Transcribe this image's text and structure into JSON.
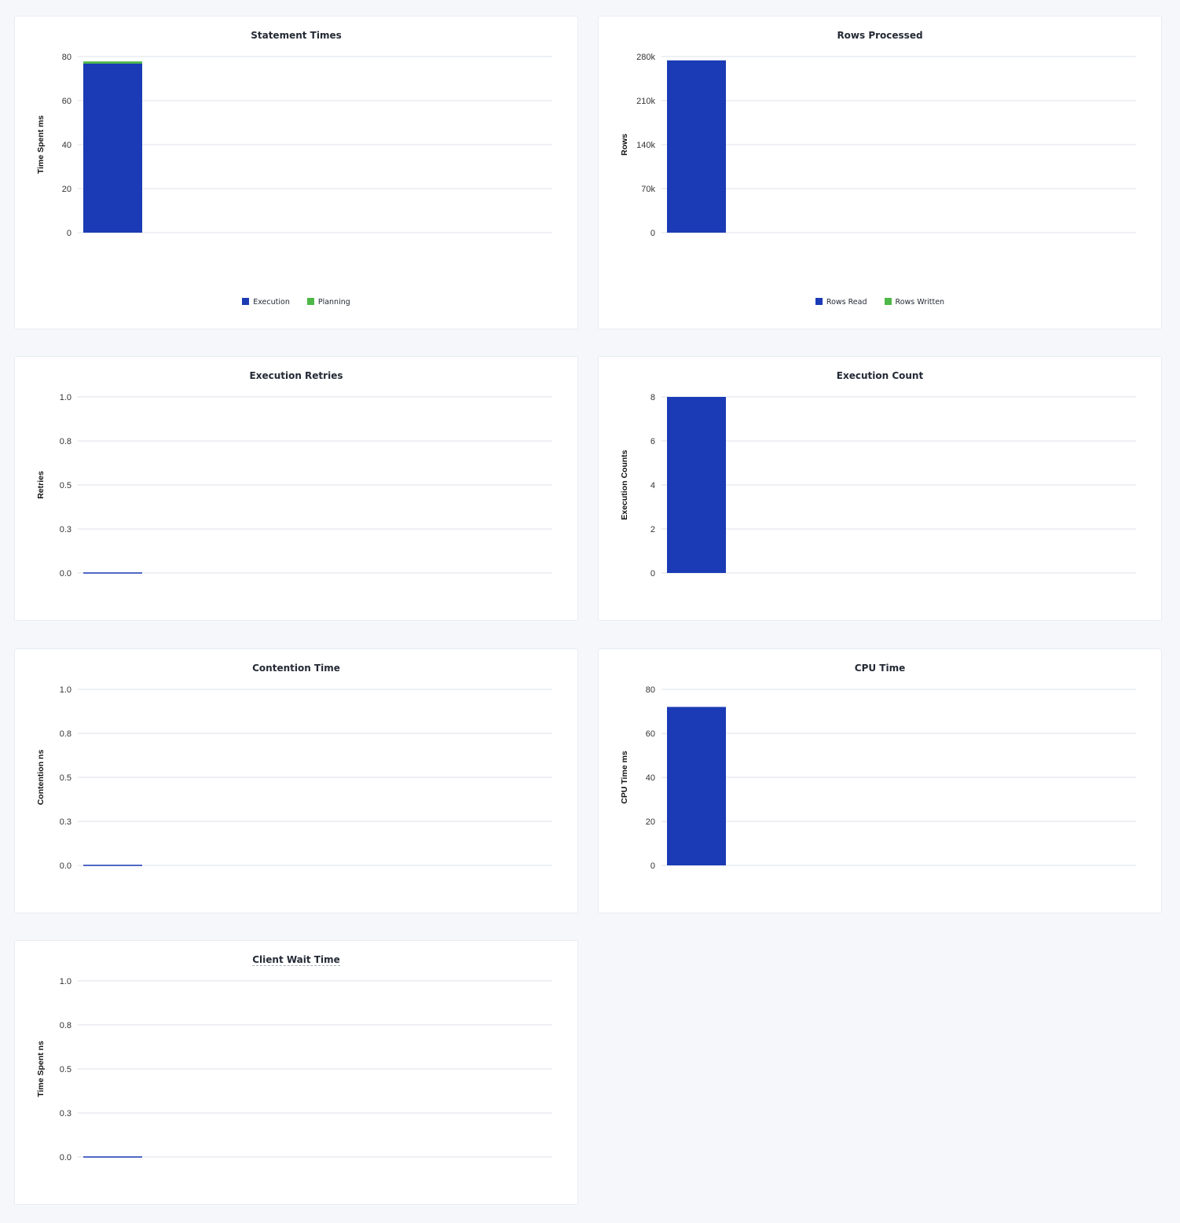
{
  "colors": {
    "primary": "#1a3bb5",
    "secondary": "#4db848",
    "grid": "#e9ecf1",
    "axis_text": "#242a35"
  },
  "chart_data": [
    {
      "type": "bar",
      "stacked": true,
      "title": "Statement Times",
      "ylabel": "Time Spent ms",
      "ylim": [
        0,
        80
      ],
      "yticks": [
        "0",
        "20",
        "40",
        "60",
        "80"
      ],
      "grid": true,
      "legend": "bottom",
      "series": [
        {
          "name": "Execution",
          "values": [
            76.8
          ],
          "color": "#1a3bb5"
        },
        {
          "name": "Planning",
          "values": [
            1.0
          ],
          "color": "#4db848"
        }
      ]
    },
    {
      "type": "bar",
      "stacked": true,
      "title": "Rows Processed",
      "ylabel": "Rows",
      "ylim": [
        0,
        280000
      ],
      "yticks": [
        "0",
        "70k",
        "140k",
        "210k",
        "280k"
      ],
      "grid": true,
      "legend": "bottom",
      "series": [
        {
          "name": "Rows Read",
          "values": [
            274000
          ],
          "color": "#1a3bb5"
        },
        {
          "name": "Rows Written",
          "values": [
            0
          ],
          "color": "#4db848"
        }
      ]
    },
    {
      "type": "bar",
      "title": "Execution Retries",
      "ylabel": "Retries",
      "ylim": [
        0,
        1
      ],
      "yticks": [
        "0.0",
        "0.3",
        "0.5",
        "0.8",
        "1.0"
      ],
      "grid": true,
      "series": [
        {
          "values": [
            0
          ],
          "color": "#1a3bb5"
        }
      ]
    },
    {
      "type": "bar",
      "title": "Execution Count",
      "ylabel": "Execution Counts",
      "ylim": [
        0,
        8
      ],
      "yticks": [
        "0",
        "2",
        "4",
        "6",
        "8"
      ],
      "grid": true,
      "series": [
        {
          "values": [
            8
          ],
          "color": "#1a3bb5"
        }
      ]
    },
    {
      "type": "bar",
      "title": "Contention Time",
      "ylabel": "Contention ns",
      "ylim": [
        0,
        1
      ],
      "yticks": [
        "0.0",
        "0.3",
        "0.5",
        "0.8",
        "1.0"
      ],
      "grid": true,
      "series": [
        {
          "values": [
            0
          ],
          "color": "#1a3bb5"
        }
      ]
    },
    {
      "type": "bar",
      "title": "CPU Time",
      "ylabel": "CPU Time ms",
      "ylim": [
        0,
        80
      ],
      "yticks": [
        "0",
        "20",
        "40",
        "60",
        "80"
      ],
      "grid": true,
      "series": [
        {
          "values": [
            72
          ],
          "color": "#1a3bb5"
        }
      ]
    },
    {
      "type": "bar",
      "title": "Client Wait Time",
      "ylabel": "Time Spent ns",
      "ylim": [
        0,
        1
      ],
      "yticks": [
        "0.0",
        "0.3",
        "0.5",
        "0.8",
        "1.0"
      ],
      "grid": true,
      "series": [
        {
          "values": [
            0
          ],
          "color": "#1a3bb5"
        }
      ]
    }
  ]
}
